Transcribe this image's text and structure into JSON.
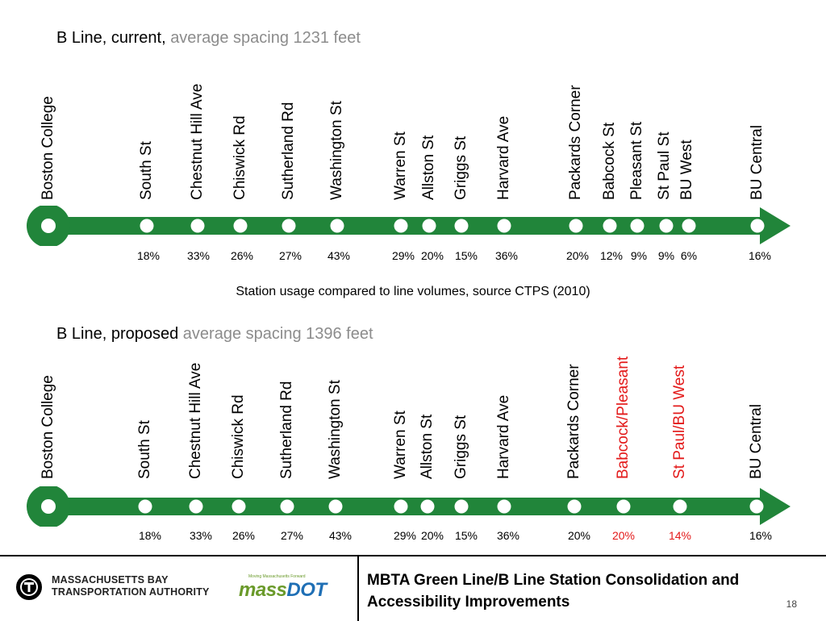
{
  "current": {
    "heading": "B Line, current,",
    "subheading": "average spacing 1231 feet",
    "stations": [
      {
        "name": "Boston College",
        "terminal": true,
        "share": ""
      },
      {
        "name": "South St",
        "share": "18%"
      },
      {
        "name": "Chestnut Hill Ave",
        "share": "33%"
      },
      {
        "name": "Chiswick Rd",
        "share": "26%"
      },
      {
        "name": "Sutherland Rd",
        "share": "27%"
      },
      {
        "name": "Washington St",
        "share": "43%"
      },
      {
        "name": "Warren St",
        "share": "29%"
      },
      {
        "name": "Allston St",
        "share": "20%"
      },
      {
        "name": "Griggs St",
        "share": "15%"
      },
      {
        "name": "Harvard Ave",
        "share": "36%"
      },
      {
        "name": "Packards Corner",
        "share": "20%"
      },
      {
        "name": "Babcock St",
        "share": "12%"
      },
      {
        "name": "Pleasant St",
        "share": "9%"
      },
      {
        "name": "St Paul St",
        "share": "9%"
      },
      {
        "name": "BU West",
        "share": "6%"
      },
      {
        "name": "BU Central",
        "share": "16%"
      }
    ]
  },
  "caption": "Station usage compared to line volumes, source CTPS (2010)",
  "proposed": {
    "heading": "B Line, proposed",
    "subheading": "average spacing 1396 feet",
    "stations": [
      {
        "name": "Boston College",
        "terminal": true,
        "share": ""
      },
      {
        "name": "South St",
        "share": "18%"
      },
      {
        "name": "Chestnut Hill Ave",
        "share": "33%"
      },
      {
        "name": "Chiswick Rd",
        "share": "26%"
      },
      {
        "name": "Sutherland Rd",
        "share": "27%"
      },
      {
        "name": "Washington St",
        "share": "43%"
      },
      {
        "name": "Warren St",
        "share": "29%"
      },
      {
        "name": "Allston St",
        "share": "20%"
      },
      {
        "name": "Griggs St",
        "share": "15%"
      },
      {
        "name": "Harvard Ave",
        "share": "36%"
      },
      {
        "name": "Packards Corner",
        "share": "20%"
      },
      {
        "name": "Babcock/Pleasant",
        "share": "20%",
        "highlight": true
      },
      {
        "name": "St Paul/BU West",
        "share": "14%",
        "highlight": true
      },
      {
        "name": "BU Central",
        "share": "16%"
      }
    ]
  },
  "colors": {
    "line_green": "#21853a",
    "highlight_red": "#e31a1a",
    "heading_gray": "#8c8c8c"
  },
  "footer": {
    "agency_line1": "MASSACHUSETTS BAY",
    "agency_line2": "TRANSPORTATION AUTHORITY",
    "agency_icon": "mbta-t-logo-icon",
    "partner_tagline": "Moving Massachusetts Forward",
    "partner_logo_mass": "mass",
    "partner_logo_dot": "DOT",
    "title": "MBTA Green Line/B Line Station Consolidation and Accessibility Improvements",
    "page_number": "18"
  }
}
